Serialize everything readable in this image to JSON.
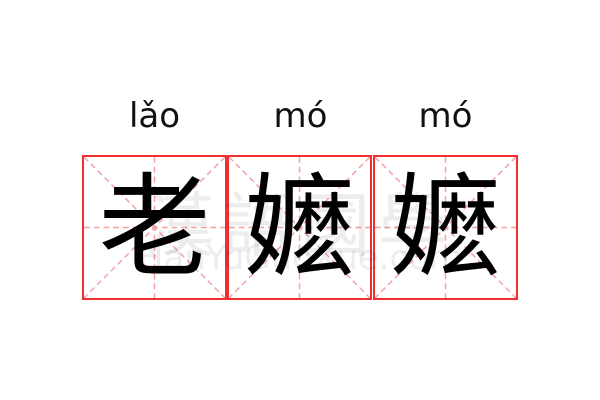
{
  "words": [
    {
      "pinyin": "lǎo",
      "hanzi": "老"
    },
    {
      "pinyin": "mó",
      "hanzi": "嬷"
    },
    {
      "pinyin": "mó",
      "hanzi": "嬷"
    }
  ],
  "watermark": {
    "chinese": "漢語國學",
    "latin": "HanYuGuoXue.com"
  },
  "colors": {
    "border": "#f03030",
    "guide": "#f4a0a0"
  }
}
